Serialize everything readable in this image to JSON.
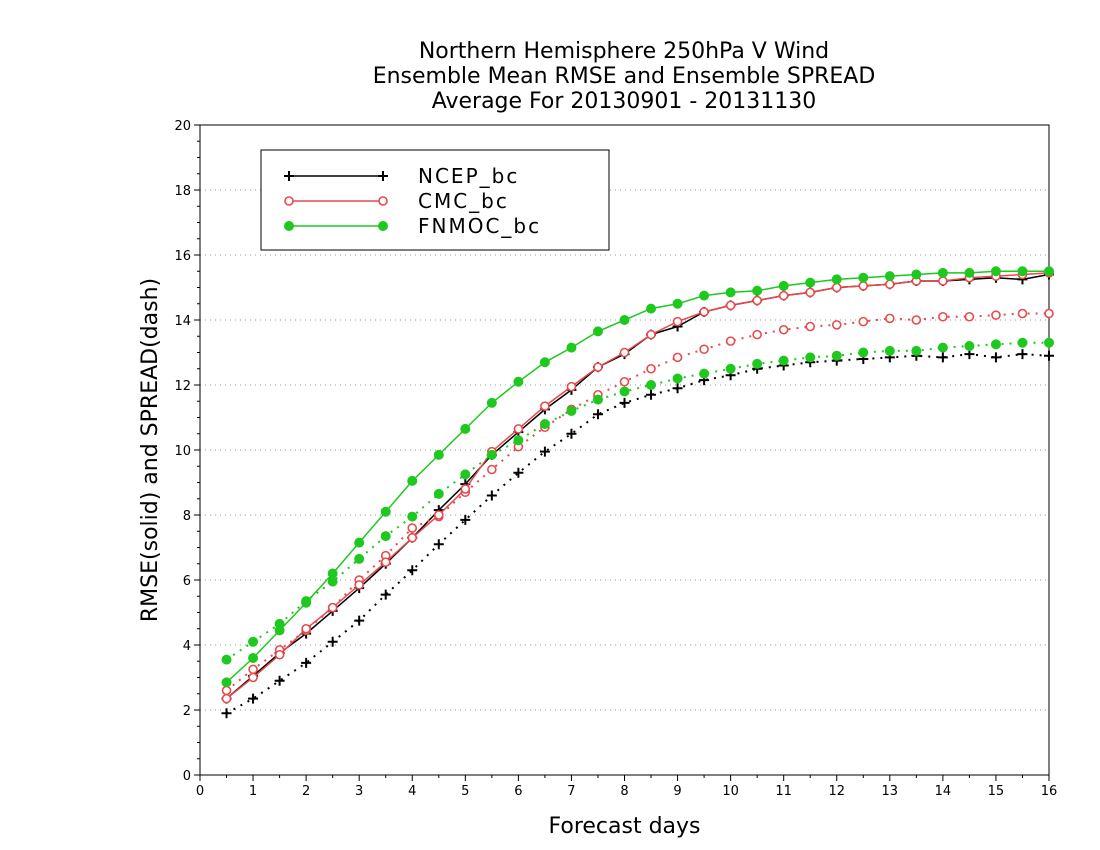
{
  "chart_data": {
    "type": "line",
    "title": [
      "Northern Hemisphere 250hPa V Wind",
      "Ensemble Mean RMSE and Ensemble SPREAD",
      "Average For 20130901 - 20131130"
    ],
    "xlabel": "Forecast days",
    "ylabel": "RMSE(solid) and SPREAD(dash)",
    "xlim": [
      0,
      16
    ],
    "ylim": [
      0,
      20
    ],
    "x_ticks": [
      "0",
      "1",
      "2",
      "3",
      "4",
      "5",
      "6",
      "7",
      "8",
      "9",
      "10",
      "11",
      "12",
      "13",
      "14",
      "15",
      "16"
    ],
    "y_ticks": [
      "0",
      "2",
      "4",
      "6",
      "8",
      "10",
      "12",
      "14",
      "16",
      "18",
      "20"
    ],
    "grid": true,
    "legend_position": "top-left",
    "x": [
      0.5,
      1,
      1.5,
      2,
      2.5,
      3,
      3.5,
      4,
      4.5,
      5,
      5.5,
      6,
      6.5,
      7,
      7.5,
      8,
      8.5,
      9,
      9.5,
      10,
      10.5,
      11,
      11.5,
      12,
      12.5,
      13,
      13.5,
      14,
      14.5,
      15,
      15.5,
      16
    ],
    "series": [
      {
        "name": "NCEP_bc",
        "color": "#000000",
        "marker": "plus",
        "rmse": [
          2.35,
          3.05,
          3.75,
          4.35,
          5.05,
          5.75,
          6.5,
          7.3,
          8.15,
          8.95,
          9.85,
          10.55,
          11.25,
          11.85,
          12.55,
          12.95,
          13.55,
          13.8,
          14.25,
          14.45,
          14.6,
          14.75,
          14.85,
          15.0,
          15.05,
          15.1,
          15.2,
          15.2,
          15.25,
          15.3,
          15.25,
          15.4
        ],
        "spread": [
          1.9,
          2.35,
          2.9,
          3.45,
          4.1,
          4.75,
          5.55,
          6.3,
          7.1,
          7.85,
          8.6,
          9.3,
          9.95,
          10.5,
          11.1,
          11.45,
          11.7,
          11.9,
          12.15,
          12.3,
          12.5,
          12.6,
          12.7,
          12.75,
          12.8,
          12.85,
          12.9,
          12.85,
          12.95,
          12.85,
          12.95,
          12.9
        ]
      },
      {
        "name": "CMC_bc",
        "color": "#e8494b",
        "marker": "circle-open",
        "rmse": [
          2.35,
          3.0,
          3.7,
          4.5,
          5.15,
          5.85,
          6.55,
          7.3,
          8.0,
          8.8,
          9.95,
          10.65,
          11.35,
          11.95,
          12.55,
          13.0,
          13.55,
          13.95,
          14.25,
          14.45,
          14.6,
          14.75,
          14.85,
          15.0,
          15.05,
          15.1,
          15.2,
          15.2,
          15.3,
          15.35,
          15.4,
          15.45
        ],
        "spread": [
          2.6,
          3.25,
          3.85,
          4.45,
          5.15,
          6.0,
          6.75,
          7.6,
          7.95,
          8.7,
          9.4,
          10.1,
          10.7,
          11.25,
          11.7,
          12.1,
          12.5,
          12.85,
          13.1,
          13.35,
          13.55,
          13.7,
          13.8,
          13.85,
          13.95,
          14.05,
          14.0,
          14.1,
          14.1,
          14.15,
          14.2,
          14.2
        ]
      },
      {
        "name": "FNMOC_bc",
        "color": "#1ec81e",
        "marker": "circle-filled",
        "rmse": [
          2.85,
          3.6,
          4.45,
          5.3,
          6.2,
          7.15,
          8.1,
          9.05,
          9.85,
          10.65,
          11.45,
          12.1,
          12.7,
          13.15,
          13.65,
          14.0,
          14.35,
          14.5,
          14.75,
          14.85,
          14.9,
          15.05,
          15.15,
          15.25,
          15.3,
          15.35,
          15.4,
          15.45,
          15.45,
          15.5,
          15.5,
          15.5
        ],
        "spread": [
          3.55,
          4.1,
          4.65,
          5.35,
          5.95,
          6.65,
          7.35,
          7.95,
          8.65,
          9.25,
          9.85,
          10.3,
          10.8,
          11.2,
          11.55,
          11.8,
          12.0,
          12.2,
          12.35,
          12.5,
          12.65,
          12.75,
          12.85,
          12.9,
          13.0,
          13.05,
          13.05,
          13.15,
          13.2,
          13.25,
          13.3,
          13.3
        ]
      }
    ]
  }
}
